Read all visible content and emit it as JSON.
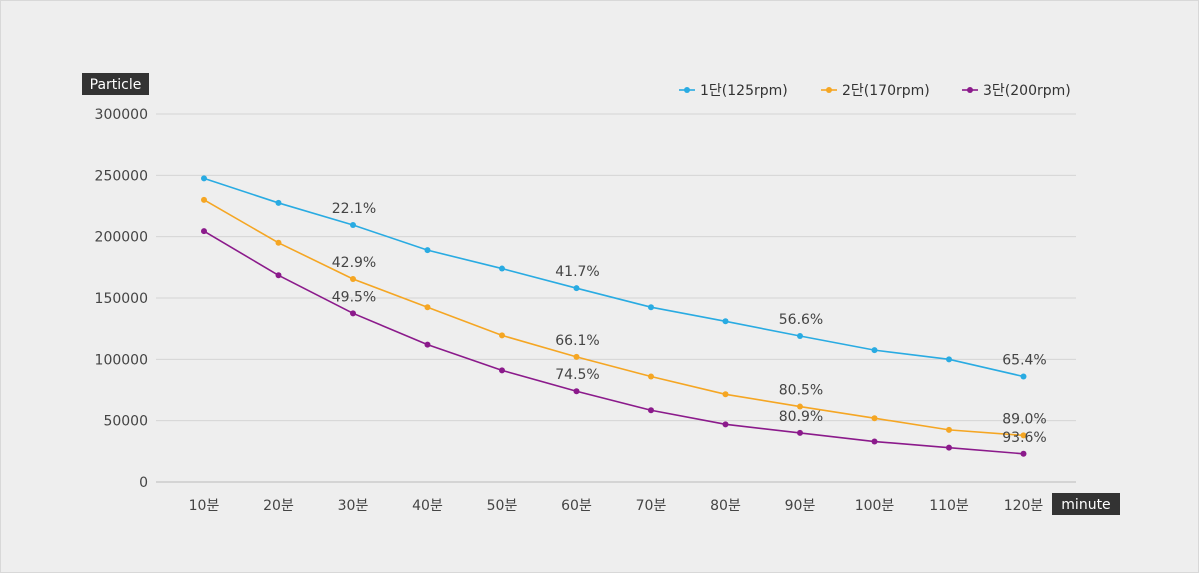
{
  "chart_data": {
    "type": "line",
    "title": "",
    "ylabel": "Particle",
    "xlabel": "minute",
    "ylim": [
      0,
      300000
    ],
    "yticks": [
      0,
      50000,
      100000,
      150000,
      200000,
      250000,
      300000
    ],
    "grid": true,
    "legend_position": "top-right",
    "categories": [
      "10분",
      "20분",
      "30분",
      "40분",
      "50분",
      "60분",
      "70분",
      "80분",
      "90분",
      "100분",
      "110분",
      "120분"
    ],
    "series": [
      {
        "name": "1단(125rpm)",
        "color": "#29abe2",
        "values": [
          247500,
          227500,
          209500,
          189000,
          174000,
          158000,
          142500,
          131000,
          119000,
          107500,
          100000,
          86000
        ],
        "annotations": [
          {
            "index": 2,
            "text": "22.1%"
          },
          {
            "index": 5,
            "text": "41.7%"
          },
          {
            "index": 8,
            "text": "56.6%"
          },
          {
            "index": 11,
            "text": "65.4%"
          }
        ]
      },
      {
        "name": "2단(170rpm)",
        "color": "#f5a623",
        "values": [
          230000,
          195000,
          165500,
          142500,
          119500,
          102000,
          86000,
          71500,
          61500,
          52000,
          42500,
          38000
        ],
        "annotations": [
          {
            "index": 2,
            "text": "42.9%"
          },
          {
            "index": 5,
            "text": "66.1%"
          },
          {
            "index": 8,
            "text": "80.5%"
          },
          {
            "index": 11,
            "text": "89.0%"
          }
        ]
      },
      {
        "name": "3단(200rpm)",
        "color": "#8b1a8b",
        "values": [
          204500,
          168500,
          137500,
          112000,
          91000,
          74000,
          58500,
          47000,
          40000,
          33000,
          28000,
          23000
        ],
        "annotations": [
          {
            "index": 2,
            "text": "49.5%"
          },
          {
            "index": 5,
            "text": "74.5%"
          },
          {
            "index": 8,
            "text": "80.9%"
          },
          {
            "index": 11,
            "text": "93.6%"
          }
        ]
      }
    ]
  }
}
